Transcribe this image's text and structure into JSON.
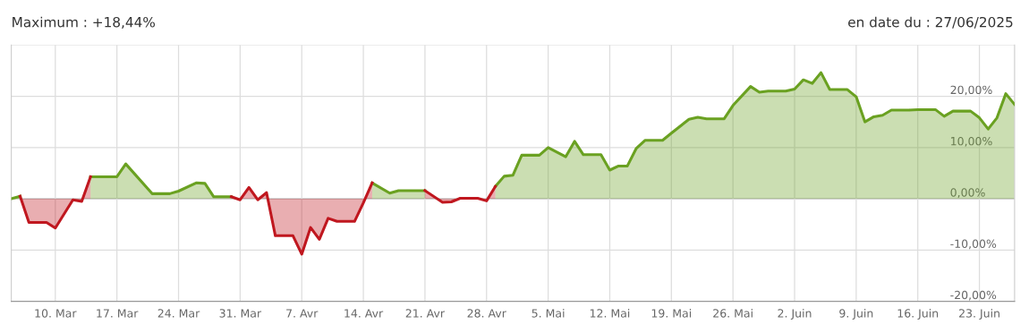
{
  "chart_data": {
    "type": "area",
    "title": "Maximum : +18,44%",
    "annotations": [
      "en date du : 27/06/2025"
    ],
    "x": [
      "2025-03-05",
      "2025-03-06",
      "2025-03-07",
      "2025-03-09",
      "2025-03-10",
      "2025-03-12",
      "2025-03-13",
      "2025-03-14",
      "2025-03-17",
      "2025-03-18",
      "2025-03-21",
      "2025-03-23",
      "2025-03-24",
      "2025-03-26",
      "2025-03-27",
      "2025-03-28",
      "2025-03-30",
      "2025-03-31",
      "2025-04-01",
      "2025-04-02",
      "2025-04-03",
      "2025-04-04",
      "2025-04-06",
      "2025-04-07",
      "2025-04-08",
      "2025-04-09",
      "2025-04-10",
      "2025-04-11",
      "2025-04-13",
      "2025-04-14",
      "2025-04-15",
      "2025-04-17",
      "2025-04-18",
      "2025-04-21",
      "2025-04-23",
      "2025-04-24",
      "2025-04-25",
      "2025-04-27",
      "2025-04-28",
      "2025-04-29",
      "2025-04-30",
      "2025-05-01",
      "2025-05-02",
      "2025-05-04",
      "2025-05-05",
      "2025-05-07",
      "2025-05-08",
      "2025-05-09",
      "2025-05-11",
      "2025-05-12",
      "2025-05-13",
      "2025-05-14",
      "2025-05-15",
      "2025-05-16",
      "2025-05-18",
      "2025-05-19",
      "2025-05-21",
      "2025-05-22",
      "2025-05-23",
      "2025-05-25",
      "2025-05-26",
      "2025-05-28",
      "2025-05-29",
      "2025-05-30",
      "2025-06-01",
      "2025-06-02",
      "2025-06-03",
      "2025-06-04",
      "2025-06-05",
      "2025-06-06",
      "2025-06-08",
      "2025-06-09",
      "2025-06-10",
      "2025-06-11",
      "2025-06-12",
      "2025-06-13",
      "2025-06-15",
      "2025-06-16",
      "2025-06-18",
      "2025-06-19",
      "2025-06-20",
      "2025-06-22",
      "2025-06-23",
      "2025-06-24",
      "2025-06-25",
      "2025-06-26",
      "2025-06-27"
    ],
    "series": [
      {
        "color": "#6aa121",
        "values": [
          0,
          0.5,
          null,
          null,
          null,
          null,
          null,
          4.3,
          4.3,
          6.8,
          1.0,
          1.0,
          1.5,
          3.1,
          3.0,
          0.4,
          0.4,
          null,
          null,
          null,
          null,
          null,
          null,
          null,
          null,
          null,
          null,
          null,
          null,
          null,
          3.1,
          1.1,
          1.6,
          1.6,
          null,
          null,
          null,
          null,
          null,
          2.4,
          4.4,
          4.6,
          8.5,
          8.5,
          10.0,
          8.2,
          11.2,
          8.6,
          8.6,
          5.6,
          6.4,
          6.4,
          9.8,
          11.4,
          11.4,
          12.8,
          15.5,
          15.9,
          15.6,
          15.6,
          18.2,
          21.9,
          20.8,
          21.0,
          21.0,
          21.4,
          23.2,
          22.5,
          24.6,
          21.3,
          21.3,
          19.9,
          15.0,
          16.0,
          16.3,
          17.3,
          17.3,
          17.4,
          17.4,
          16.1,
          17.1,
          17.1,
          15.8,
          13.6,
          15.8,
          20.5,
          18.4
        ]
      },
      {
        "color": "#c0171f",
        "values": [
          null,
          0.5,
          -4.6,
          -4.6,
          -5.7,
          -0.2,
          -0.5,
          4.3,
          null,
          null,
          null,
          null,
          null,
          null,
          null,
          null,
          0.4,
          -0.2,
          2.2,
          -0.2,
          1.2,
          -7.2,
          -7.2,
          -10.8,
          -5.6,
          -7.9,
          -3.8,
          -4.4,
          -4.4,
          -0.8,
          3.1,
          null,
          null,
          1.6,
          -0.7,
          -0.6,
          0.1,
          0.1,
          -0.4,
          2.4,
          null,
          null,
          null,
          null,
          null,
          null,
          null,
          null,
          null,
          null,
          null,
          null,
          null,
          null,
          null,
          null,
          null,
          null,
          null,
          null,
          null,
          null,
          null,
          null,
          null,
          null,
          null,
          null,
          null,
          null,
          null,
          null,
          null,
          null,
          null,
          null,
          null,
          null,
          null,
          null,
          null,
          null,
          null,
          null,
          null,
          null,
          null
        ]
      }
    ],
    "xlim": [
      "2025-03-05",
      "2025-06-27"
    ],
    "xticks": [
      {
        "value": "2025-03-10",
        "label": "10. Mar"
      },
      {
        "value": "2025-03-17",
        "label": "17. Mar"
      },
      {
        "value": "2025-03-24",
        "label": "24. Mar"
      },
      {
        "value": "2025-03-31",
        "label": "31. Mar"
      },
      {
        "value": "2025-04-07",
        "label": "7. Avr"
      },
      {
        "value": "2025-04-14",
        "label": "14. Avr"
      },
      {
        "value": "2025-04-21",
        "label": "21. Avr"
      },
      {
        "value": "2025-04-28",
        "label": "28. Avr"
      },
      {
        "value": "2025-05-05",
        "label": "5. Mai"
      },
      {
        "value": "2025-05-12",
        "label": "12. Mai"
      },
      {
        "value": "2025-05-19",
        "label": "19. Mai"
      },
      {
        "value": "2025-05-26",
        "label": "26. Mai"
      },
      {
        "value": "2025-06-02",
        "label": "2. Juin"
      },
      {
        "value": "2025-06-09",
        "label": "9. Juin"
      },
      {
        "value": "2025-06-16",
        "label": "16. Juin"
      },
      {
        "value": "2025-06-23",
        "label": "23. Juin"
      }
    ],
    "ylim": [
      -20,
      30
    ],
    "yticks": [
      {
        "value": -20,
        "label": "-20,00%"
      },
      {
        "value": -10,
        "label": "-10,00%"
      },
      {
        "value": 0,
        "label": "0,00%"
      },
      {
        "value": 10,
        "label": "10,00%"
      },
      {
        "value": 20,
        "label": "20,00%"
      },
      {
        "value": 30,
        "label": null
      }
    ],
    "grid": true,
    "legend": false
  }
}
